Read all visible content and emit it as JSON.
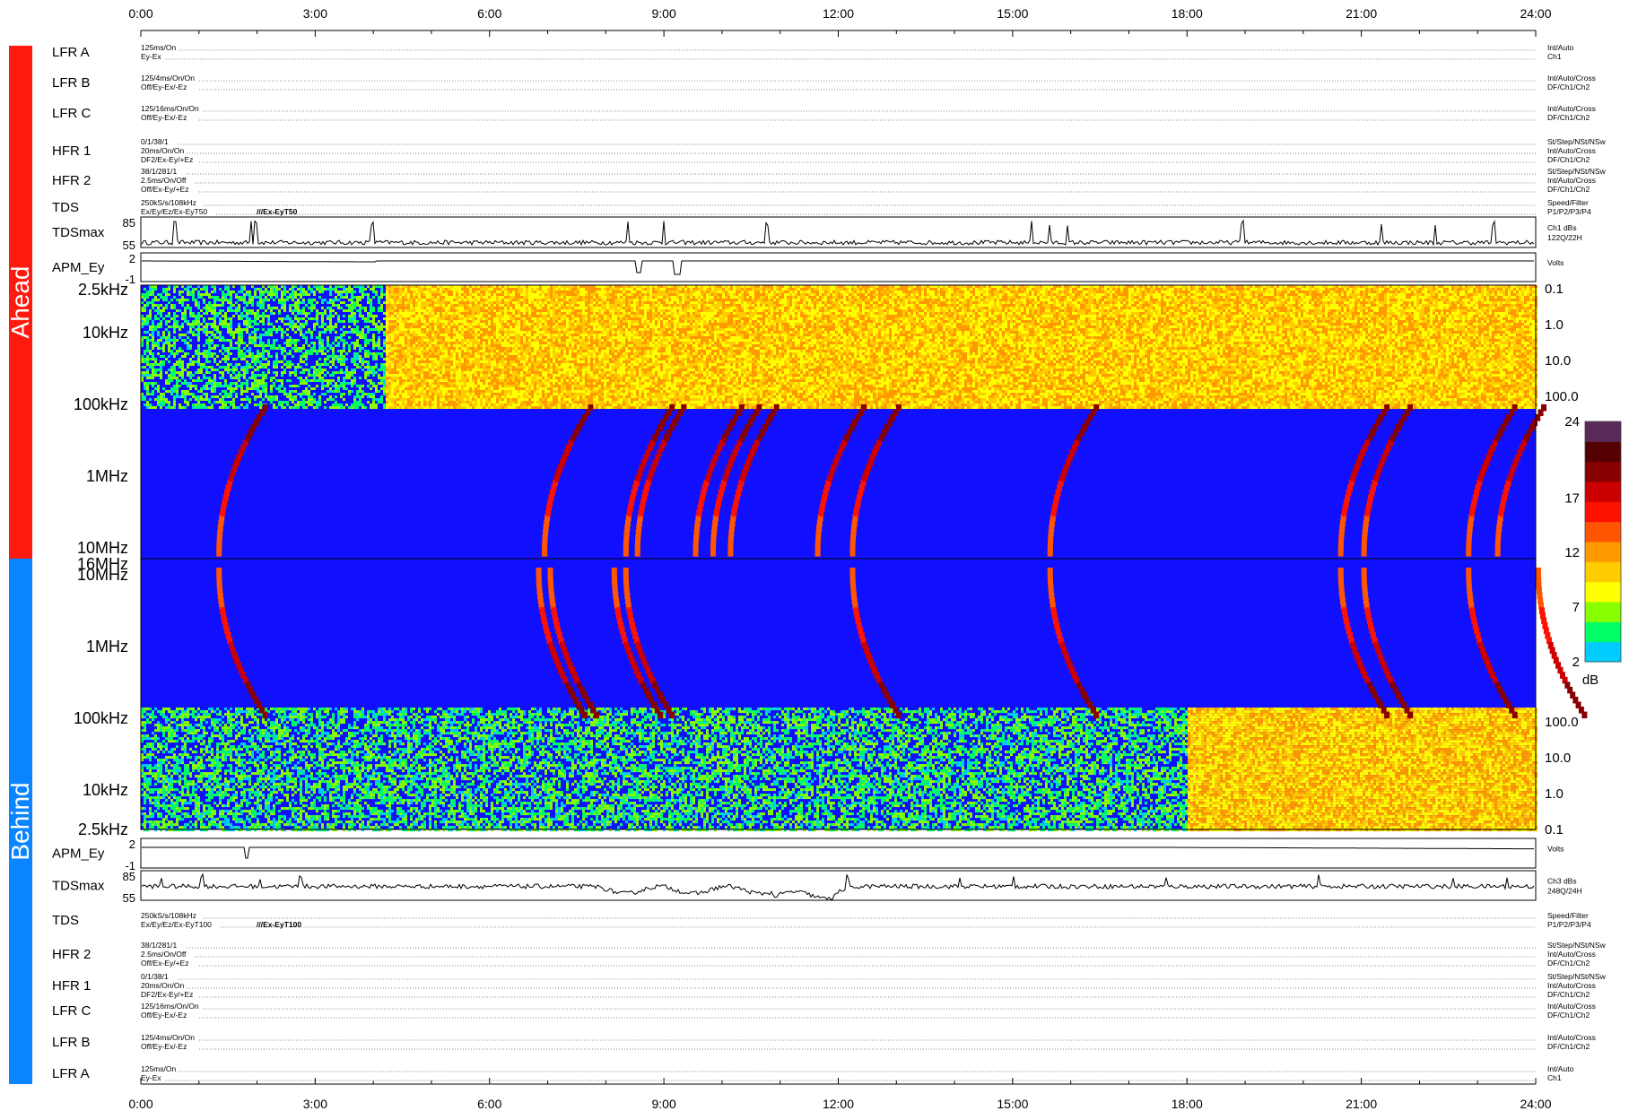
{
  "colors": {
    "ahead": "#ff1a10",
    "behind": "#0a84ff",
    "background": "#1010ff",
    "colormap": [
      "#00ccff",
      "#00ff66",
      "#88ff00",
      "#ffff00",
      "#ffcc00",
      "#ff9900",
      "#ff5500",
      "#ff1100",
      "#cc0000",
      "#880000",
      "#550000",
      "#5a2a5a"
    ]
  },
  "sidebars": {
    "ahead": "Ahead",
    "behind": "Behind"
  },
  "time_axis": {
    "ticks": [
      "0:00",
      "3:00",
      "6:00",
      "9:00",
      "12:00",
      "15:00",
      "18:00",
      "21:00",
      "24:00"
    ]
  },
  "ahead": {
    "rows": [
      {
        "label": "LFR A",
        "left": [
          "125ms/On",
          "Ey-Ex"
        ],
        "right": [
          "Int/Auto",
          "Ch1"
        ]
      },
      {
        "label": "LFR B",
        "left": [
          "125/4ms/On/On",
          "Off/Ey-Ex/-Ez"
        ],
        "right": [
          "Int/Auto/Cross",
          "DF/Ch1/Ch2"
        ]
      },
      {
        "label": "LFR C",
        "left": [
          "125/16ms/On/On",
          "Off/Ey-Ex/-Ez"
        ],
        "right": [
          "Int/Auto/Cross",
          "DF/Ch1/Ch2"
        ]
      },
      {
        "label": "HFR 1",
        "left": [
          "0/1/38/1",
          "20ms/On/On",
          "DF2/Ex-Ey/+Ez"
        ],
        "right": [
          "St/Step/NSt/NSw",
          "Int/Auto/Cross",
          "DF/Ch1/Ch2"
        ]
      },
      {
        "label": "HFR 2",
        "left": [
          "38/1/281/1",
          "2.5ms/On/Off",
          "Off/Ex-Ey/+Ez"
        ],
        "right": [
          "St/Step/NSt/NSw",
          "Int/Auto/Cross",
          "DF/Ch1/Ch2"
        ]
      },
      {
        "label": "TDS",
        "left": [
          "250kS/s/108kHz",
          "Ex/Ey/Ez/Ex-EyT50"
        ],
        "mid": "///Ex-EyT50",
        "right": [
          "Speed/Filter",
          "P1/P2/P3/P4"
        ]
      }
    ],
    "tdsmax": {
      "label": "TDSmax",
      "ticks": [
        "85",
        "55"
      ],
      "right": [
        "Ch1 dBs",
        "122Q/22H"
      ]
    },
    "apm": {
      "label": "APM_Ey",
      "ticks": [
        "2",
        "-1"
      ],
      "right": [
        "Volts"
      ]
    },
    "spectrogram": {
      "freq_labels": [
        "2.5kHz",
        "10kHz",
        "100kHz",
        "1MHz",
        "10MHz",
        "16MHz"
      ],
      "right_labels": [
        "0.1",
        "1.0",
        "10.0",
        "100.0"
      ]
    }
  },
  "behind": {
    "apm": {
      "label": "APM_Ey",
      "ticks": [
        "2",
        "-1"
      ],
      "right": [
        "Volts"
      ]
    },
    "tdsmax": {
      "label": "TDSmax",
      "ticks": [
        "85",
        "55"
      ],
      "right": [
        "Ch3 dBs",
        "248Q/24H"
      ]
    },
    "rows": [
      {
        "label": "TDS",
        "left": [
          "250kS/s/108kHz",
          "Ex/Ey/Ez/Ex-EyT100"
        ],
        "mid": "///Ex-EyT100",
        "right": [
          "Speed/Filter",
          "P1/P2/P3/P4"
        ]
      },
      {
        "label": "HFR 2",
        "left": [
          "38/1/281/1",
          "2.5ms/On/Off",
          "Off/Ex-Ey/+Ez"
        ],
        "right": [
          "St/Step/NSt/NSw",
          "Int/Auto/Cross",
          "DF/Ch1/Ch2"
        ]
      },
      {
        "label": "HFR 1",
        "left": [
          "0/1/38/1",
          "20ms/On/On",
          "DF2/Ex-Ey/+Ez"
        ],
        "right": [
          "St/Step/NSt/NSw",
          "Int/Auto/Cross",
          "DF/Ch1/Ch2"
        ]
      },
      {
        "label": "LFR C",
        "left": [
          "125/16ms/On/On",
          "Off/Ey-Ex/-Ez"
        ],
        "right": [
          "Int/Auto/Cross",
          "DF/Ch1/Ch2"
        ]
      },
      {
        "label": "LFR B",
        "left": [
          "125/4ms/On/On",
          "Off/Ey-Ex/-Ez"
        ],
        "right": [
          "Int/Auto/Cross",
          "DF/Ch1/Ch2"
        ]
      },
      {
        "label": "LFR A",
        "left": [
          "125ms/On",
          "Ey-Ex"
        ],
        "right": [
          "Int/Auto",
          "Ch1"
        ]
      }
    ],
    "spectrogram": {
      "freq_labels": [
        "10MHz",
        "1MHz",
        "100kHz",
        "10kHz",
        "2.5kHz"
      ],
      "right_labels": [
        "100.0",
        "10.0",
        "1.0",
        "0.1"
      ]
    }
  },
  "colorbar": {
    "ticks": [
      "24",
      "17",
      "12",
      "7",
      "2"
    ],
    "unit": "dB"
  },
  "chart_data": {
    "type": "heatmap",
    "title": "",
    "x_range_hours": [
      0,
      24
    ],
    "panels": [
      {
        "name": "Ahead",
        "freq_range": [
          "2.5kHz",
          "16MHz"
        ],
        "value_range_dB": [
          2,
          24
        ],
        "type_iii_bursts_hours": [
          1.3,
          6.9,
          8.3,
          8.5,
          9.5,
          9.8,
          10.1,
          11.6,
          12.2,
          15.6,
          20.6,
          21.0,
          22.8,
          23.3
        ]
      },
      {
        "name": "Behind",
        "freq_range": [
          "2.5kHz",
          "16MHz"
        ],
        "value_range_dB": [
          2,
          24
        ],
        "type_iii_bursts_hours": [
          1.3,
          6.8,
          7.0,
          8.1,
          8.3,
          12.2,
          15.6,
          20.6,
          21.0,
          22.8,
          24.0
        ]
      }
    ]
  }
}
